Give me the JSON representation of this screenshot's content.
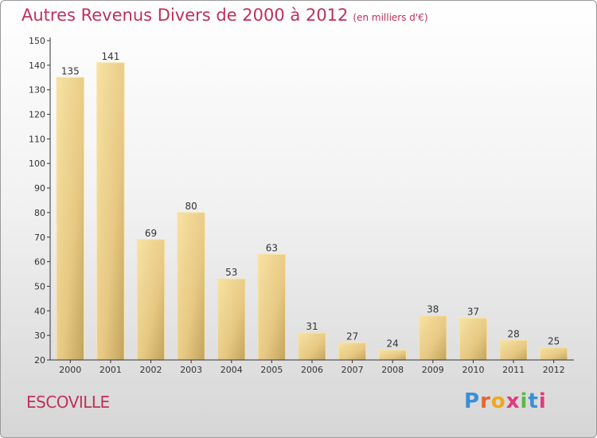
{
  "header": {
    "title": "Autres Revenus Divers de 2000 à 2012",
    "unit": "(en milliers d'€)"
  },
  "footer": {
    "town": "ESCOVILLE",
    "logo": "Proxiti"
  },
  "colors": {
    "title": "#c0305a",
    "bar_light": "#f6dc94",
    "bar_dark": "#c7ab62",
    "axis": "#333333"
  },
  "chart_data": {
    "type": "bar",
    "title": "Autres Revenus Divers de 2000 à 2012",
    "subtitle": "(en milliers d'€)",
    "categories": [
      "2000",
      "2001",
      "2002",
      "2003",
      "2004",
      "2005",
      "2006",
      "2007",
      "2008",
      "2009",
      "2010",
      "2011",
      "2012"
    ],
    "values": [
      135,
      141,
      69,
      80,
      53,
      63,
      31,
      27,
      24,
      38,
      37,
      28,
      25
    ],
    "xlabel": "",
    "ylabel": "",
    "ylim": [
      20,
      150
    ],
    "yticks": [
      20,
      30,
      40,
      50,
      60,
      70,
      80,
      90,
      100,
      110,
      120,
      130,
      140,
      150
    ],
    "grid": false,
    "legend": "none"
  }
}
